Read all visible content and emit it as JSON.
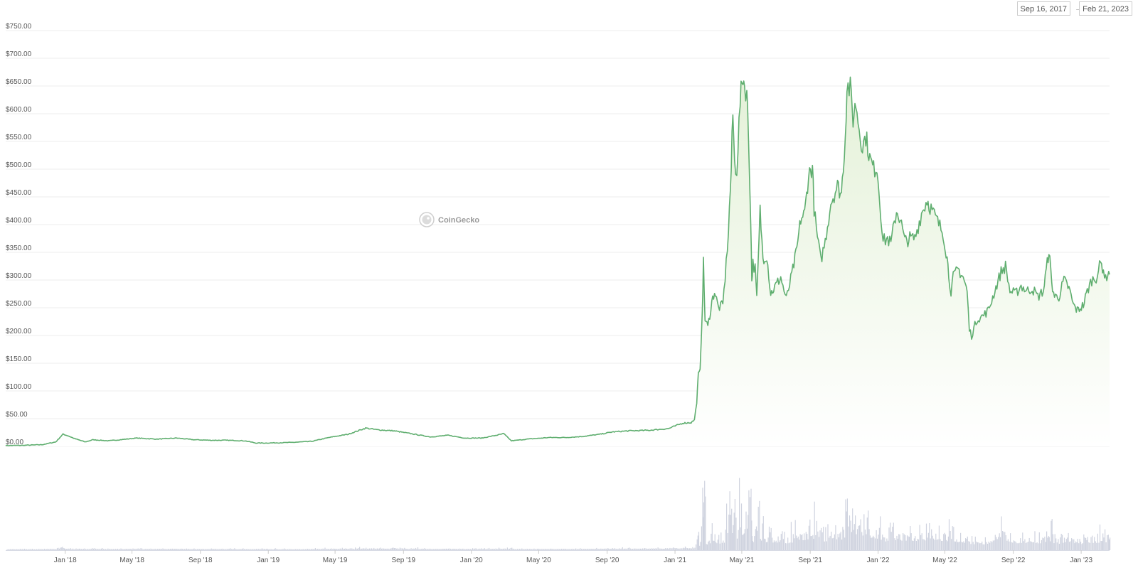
{
  "header": {
    "range_from": "Sep 16, 2017",
    "range_arrow": "→",
    "range_to": "Feb 21, 2023"
  },
  "watermark": {
    "label": "CoinGecko",
    "icon": "coingecko-logo"
  },
  "colors": {
    "line": "#5fae6f",
    "area_top": "#e4f1d8",
    "area_bottom": "#ffffff",
    "volume": "#cfd3df",
    "grid": "#ececec"
  },
  "chart_data": {
    "type": "area",
    "title": "",
    "xlabel": "",
    "ylabel": "",
    "x_range": [
      "2017-09-16",
      "2023-02-21"
    ],
    "ylim": [
      0,
      750
    ],
    "grid": true,
    "legend": "none",
    "y_ticks": [
      "$0.00",
      "$50.00",
      "$100.00",
      "$150.00",
      "$200.00",
      "$250.00",
      "$300.00",
      "$350.00",
      "$400.00",
      "$450.00",
      "$500.00",
      "$550.00",
      "$600.00",
      "$650.00",
      "$700.00",
      "$750.00"
    ],
    "y_tick_values": [
      0,
      50,
      100,
      150,
      200,
      250,
      300,
      350,
      400,
      450,
      500,
      550,
      600,
      650,
      700,
      750
    ],
    "x_ticks": [
      {
        "date": "2018-01-01",
        "label": "Jan '18"
      },
      {
        "date": "2018-05-01",
        "label": "May '18"
      },
      {
        "date": "2018-09-01",
        "label": "Sep '18"
      },
      {
        "date": "2019-01-01",
        "label": "Jan '19"
      },
      {
        "date": "2019-05-01",
        "label": "May '19"
      },
      {
        "date": "2019-09-01",
        "label": "Sep '19"
      },
      {
        "date": "2020-01-01",
        "label": "Jan '20"
      },
      {
        "date": "2020-05-01",
        "label": "May '20"
      },
      {
        "date": "2020-09-01",
        "label": "Sep '20"
      },
      {
        "date": "2021-01-01",
        "label": "Jan '21"
      },
      {
        "date": "2021-05-01",
        "label": "May '21"
      },
      {
        "date": "2021-09-01",
        "label": "Sep '21"
      },
      {
        "date": "2022-01-01",
        "label": "Jan '22"
      },
      {
        "date": "2022-05-01",
        "label": "May '22"
      },
      {
        "date": "2022-09-01",
        "label": "Sep '22"
      },
      {
        "date": "2023-01-01",
        "label": "Jan '23"
      }
    ],
    "series": [
      {
        "points": [
          [
            "2017-09-16",
            1.5
          ],
          [
            "2017-10-15",
            1.8
          ],
          [
            "2017-11-20",
            3
          ],
          [
            "2017-12-15",
            8
          ],
          [
            "2017-12-28",
            22
          ],
          [
            "2018-01-06",
            19
          ],
          [
            "2018-01-18",
            14
          ],
          [
            "2018-02-06",
            8
          ],
          [
            "2018-02-20",
            12
          ],
          [
            "2018-03-20",
            10
          ],
          [
            "2018-04-20",
            13
          ],
          [
            "2018-05-10",
            15
          ],
          [
            "2018-06-15",
            13
          ],
          [
            "2018-07-20",
            15
          ],
          [
            "2018-08-20",
            12
          ],
          [
            "2018-09-20",
            11
          ],
          [
            "2018-10-20",
            11
          ],
          [
            "2018-11-20",
            10
          ],
          [
            "2018-12-10",
            6
          ],
          [
            "2018-12-28",
            6
          ],
          [
            "2019-02-10",
            7
          ],
          [
            "2019-03-20",
            9
          ],
          [
            "2019-04-20",
            16
          ],
          [
            "2019-05-25",
            22
          ],
          [
            "2019-06-25",
            33
          ],
          [
            "2019-07-15",
            30
          ],
          [
            "2019-08-15",
            28
          ],
          [
            "2019-09-20",
            22
          ],
          [
            "2019-10-20",
            17
          ],
          [
            "2019-11-20",
            20
          ],
          [
            "2019-12-20",
            15
          ],
          [
            "2020-01-20",
            15
          ],
          [
            "2020-02-15",
            20
          ],
          [
            "2020-02-28",
            23
          ],
          [
            "2020-03-13",
            10
          ],
          [
            "2020-04-10",
            13
          ],
          [
            "2020-05-20",
            16
          ],
          [
            "2020-06-20",
            16
          ],
          [
            "2020-07-20",
            18
          ],
          [
            "2020-08-20",
            22
          ],
          [
            "2020-09-10",
            26
          ],
          [
            "2020-10-10",
            28
          ],
          [
            "2020-11-15",
            29
          ],
          [
            "2020-12-20",
            32
          ],
          [
            "2021-01-15",
            42
          ],
          [
            "2021-01-30",
            43
          ],
          [
            "2021-02-05",
            48
          ],
          [
            "2021-02-09",
            80
          ],
          [
            "2021-02-12",
            130
          ],
          [
            "2021-02-15",
            135
          ],
          [
            "2021-02-19",
            250
          ],
          [
            "2021-02-21",
            330
          ],
          [
            "2021-02-24",
            230
          ],
          [
            "2021-03-01",
            215
          ],
          [
            "2021-03-08",
            260
          ],
          [
            "2021-03-13",
            280
          ],
          [
            "2021-03-20",
            250
          ],
          [
            "2021-03-28",
            255
          ],
          [
            "2021-04-03",
            330
          ],
          [
            "2021-04-07",
            390
          ],
          [
            "2021-04-12",
            500
          ],
          [
            "2021-04-15",
            600
          ],
          [
            "2021-04-18",
            510
          ],
          [
            "2021-04-22",
            500
          ],
          [
            "2021-04-28",
            620
          ],
          [
            "2021-05-03",
            670
          ],
          [
            "2021-05-06",
            650
          ],
          [
            "2021-05-10",
            640
          ],
          [
            "2021-05-13",
            560
          ],
          [
            "2021-05-17",
            420
          ],
          [
            "2021-05-19",
            300
          ],
          [
            "2021-05-21",
            330
          ],
          [
            "2021-05-25",
            320
          ],
          [
            "2021-05-28",
            265
          ],
          [
            "2021-06-03",
            425
          ],
          [
            "2021-06-08",
            340
          ],
          [
            "2021-06-15",
            345
          ],
          [
            "2021-06-22",
            275
          ],
          [
            "2021-07-01",
            290
          ],
          [
            "2021-07-10",
            305
          ],
          [
            "2021-07-20",
            265
          ],
          [
            "2021-07-30",
            310
          ],
          [
            "2021-08-08",
            355
          ],
          [
            "2021-08-15",
            410
          ],
          [
            "2021-08-22",
            420
          ],
          [
            "2021-08-29",
            490
          ],
          [
            "2021-09-05",
            505
          ],
          [
            "2021-09-08",
            430
          ],
          [
            "2021-09-12",
            390
          ],
          [
            "2021-09-20",
            335
          ],
          [
            "2021-09-28",
            370
          ],
          [
            "2021-10-08",
            440
          ],
          [
            "2021-10-20",
            470
          ],
          [
            "2021-10-27",
            455
          ],
          [
            "2021-11-03",
            560
          ],
          [
            "2021-11-06",
            650
          ],
          [
            "2021-11-12",
            645
          ],
          [
            "2021-11-17",
            590
          ],
          [
            "2021-11-22",
            620
          ],
          [
            "2021-11-28",
            575
          ],
          [
            "2021-12-04",
            540
          ],
          [
            "2021-12-10",
            560
          ],
          [
            "2021-12-17",
            520
          ],
          [
            "2021-12-24",
            500
          ],
          [
            "2021-12-30",
            505
          ],
          [
            "2022-01-06",
            420
          ],
          [
            "2022-01-10",
            370
          ],
          [
            "2022-01-18",
            375
          ],
          [
            "2022-01-24",
            365
          ],
          [
            "2022-02-03",
            425
          ],
          [
            "2022-02-10",
            410
          ],
          [
            "2022-02-18",
            370
          ],
          [
            "2022-02-27",
            375
          ],
          [
            "2022-03-08",
            375
          ],
          [
            "2022-03-20",
            420
          ],
          [
            "2022-03-30",
            445
          ],
          [
            "2022-04-08",
            425
          ],
          [
            "2022-04-18",
            405
          ],
          [
            "2022-04-28",
            385
          ],
          [
            "2022-05-05",
            340
          ],
          [
            "2022-05-08",
            310
          ],
          [
            "2022-05-12",
            280
          ],
          [
            "2022-05-16",
            305
          ],
          [
            "2022-05-25",
            320
          ],
          [
            "2022-06-03",
            305
          ],
          [
            "2022-06-10",
            280
          ],
          [
            "2022-06-14",
            210
          ],
          [
            "2022-06-18",
            200
          ],
          [
            "2022-06-28",
            230
          ],
          [
            "2022-07-08",
            235
          ],
          [
            "2022-07-18",
            245
          ],
          [
            "2022-07-28",
            275
          ],
          [
            "2022-08-10",
            315
          ],
          [
            "2022-08-18",
            325
          ],
          [
            "2022-08-26",
            280
          ],
          [
            "2022-09-05",
            275
          ],
          [
            "2022-09-15",
            290
          ],
          [
            "2022-09-25",
            280
          ],
          [
            "2022-10-05",
            285
          ],
          [
            "2022-10-15",
            270
          ],
          [
            "2022-10-25",
            280
          ],
          [
            "2022-11-01",
            330
          ],
          [
            "2022-11-04",
            355
          ],
          [
            "2022-11-09",
            295
          ],
          [
            "2022-11-14",
            270
          ],
          [
            "2022-11-22",
            270
          ],
          [
            "2022-12-01",
            300
          ],
          [
            "2022-12-10",
            285
          ],
          [
            "2022-12-18",
            255
          ],
          [
            "2022-12-25",
            245
          ],
          [
            "2023-01-05",
            255
          ],
          [
            "2023-01-12",
            280
          ],
          [
            "2023-01-20",
            300
          ],
          [
            "2023-01-28",
            305
          ],
          [
            "2023-02-05",
            330
          ],
          [
            "2023-02-10",
            320
          ],
          [
            "2023-02-14",
            300
          ],
          [
            "2023-02-18",
            315
          ],
          [
            "2023-02-21",
            310
          ]
        ]
      }
    ]
  }
}
